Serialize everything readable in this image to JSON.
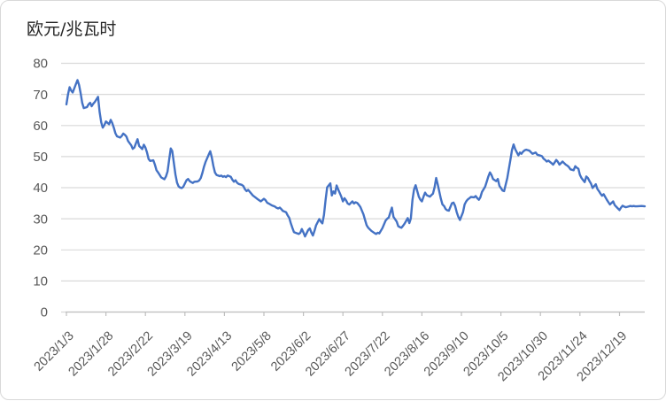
{
  "styles": {
    "background": "#ffffff",
    "frame_border_color": "#d8d8d8",
    "grid_color": "#d9d9d9",
    "axis_color": "#bfbfbf",
    "tick_label_color": "#595959",
    "title_color": "#262626"
  },
  "chart_data": {
    "type": "line",
    "title": "欧元/兆瓦时",
    "xlabel": "",
    "ylabel": "",
    "grid": true,
    "legend": false,
    "line_color": "#4472c4",
    "ylim": [
      0,
      80
    ],
    "y_ticks": [
      0,
      10,
      20,
      30,
      40,
      50,
      60,
      70,
      80
    ],
    "x_axis": {
      "rotation_deg": -45,
      "tick_interval_days": 25,
      "labels": [
        "2023/1/3",
        "2023/1/28",
        "2023/2/22",
        "2023/3/19",
        "2023/4/13",
        "2023/5/8",
        "2023/6/2",
        "2023/6/27",
        "2023/7/22",
        "2023/8/16",
        "2023/9/10",
        "2023/10/5",
        "2023/10/30",
        "2023/11/24",
        "2023/12/19"
      ]
    },
    "points": [
      [
        "2023/1/3",
        66.8
      ],
      [
        "2023/1/4",
        70.0
      ],
      [
        "2023/1/5",
        72.3
      ],
      [
        "2023/1/6",
        71.2
      ],
      [
        "2023/1/7",
        70.6
      ],
      [
        "2023/1/9",
        73.3
      ],
      [
        "2023/1/10",
        74.6
      ],
      [
        "2023/1/11",
        73.0
      ],
      [
        "2023/1/12",
        70.3
      ],
      [
        "2023/1/13",
        67.3
      ],
      [
        "2023/1/14",
        65.6
      ],
      [
        "2023/1/16",
        65.9
      ],
      [
        "2023/1/17",
        66.8
      ],
      [
        "2023/1/18",
        67.3
      ],
      [
        "2023/1/19",
        66.2
      ],
      [
        "2023/1/20",
        67.0
      ],
      [
        "2023/1/21",
        67.6
      ],
      [
        "2023/1/23",
        69.2
      ],
      [
        "2023/1/24",
        64.3
      ],
      [
        "2023/1/25",
        61.0
      ],
      [
        "2023/1/26",
        59.3
      ],
      [
        "2023/1/27",
        60.1
      ],
      [
        "2023/1/28",
        61.3
      ],
      [
        "2023/1/30",
        60.4
      ],
      [
        "2023/1/31",
        61.8
      ],
      [
        "2023/2/1",
        60.8
      ],
      [
        "2023/2/2",
        59.3
      ],
      [
        "2023/2/3",
        57.5
      ],
      [
        "2023/2/4",
        56.5
      ],
      [
        "2023/2/6",
        56.1
      ],
      [
        "2023/2/7",
        56.6
      ],
      [
        "2023/2/8",
        57.4
      ],
      [
        "2023/2/9",
        57.0
      ],
      [
        "2023/2/10",
        56.4
      ],
      [
        "2023/2/11",
        55.0
      ],
      [
        "2023/2/13",
        53.6
      ],
      [
        "2023/2/14",
        52.5
      ],
      [
        "2023/2/15",
        52.9
      ],
      [
        "2023/2/16",
        54.3
      ],
      [
        "2023/2/17",
        55.6
      ],
      [
        "2023/2/18",
        53.4
      ],
      [
        "2023/2/20",
        52.4
      ],
      [
        "2023/2/21",
        53.8
      ],
      [
        "2023/2/22",
        52.9
      ],
      [
        "2023/2/23",
        51.3
      ],
      [
        "2023/2/24",
        49.2
      ],
      [
        "2023/2/25",
        48.6
      ],
      [
        "2023/2/27",
        48.8
      ],
      [
        "2023/2/28",
        47.4
      ],
      [
        "2023/3/1",
        45.6
      ],
      [
        "2023/3/2",
        44.9
      ],
      [
        "2023/3/3",
        44.1
      ],
      [
        "2023/3/4",
        43.3
      ],
      [
        "2023/3/6",
        42.7
      ],
      [
        "2023/3/7",
        43.6
      ],
      [
        "2023/3/8",
        45.2
      ],
      [
        "2023/3/9",
        49.0
      ],
      [
        "2023/3/10",
        52.6
      ],
      [
        "2023/3/11",
        51.8
      ],
      [
        "2023/3/13",
        44.2
      ],
      [
        "2023/3/14",
        41.6
      ],
      [
        "2023/3/15",
        40.4
      ],
      [
        "2023/3/16",
        40.0
      ],
      [
        "2023/3/17",
        39.9
      ],
      [
        "2023/3/18",
        40.3
      ],
      [
        "2023/3/20",
        42.4
      ],
      [
        "2023/3/21",
        42.8
      ],
      [
        "2023/3/22",
        42.1
      ],
      [
        "2023/3/23",
        41.8
      ],
      [
        "2023/3/24",
        41.5
      ],
      [
        "2023/3/25",
        41.9
      ],
      [
        "2023/3/27",
        42.0
      ],
      [
        "2023/3/28",
        42.3
      ],
      [
        "2023/3/29",
        43.1
      ],
      [
        "2023/3/30",
        44.6
      ],
      [
        "2023/3/31",
        46.6
      ],
      [
        "2023/4/1",
        48.2
      ],
      [
        "2023/4/3",
        50.6
      ],
      [
        "2023/4/4",
        51.7
      ],
      [
        "2023/4/5",
        49.8
      ],
      [
        "2023/4/6",
        47.0
      ],
      [
        "2023/4/7",
        44.9
      ],
      [
        "2023/4/8",
        44.1
      ],
      [
        "2023/4/10",
        43.7
      ],
      [
        "2023/4/11",
        43.9
      ],
      [
        "2023/4/12",
        43.5
      ],
      [
        "2023/4/13",
        43.7
      ],
      [
        "2023/4/14",
        43.4
      ],
      [
        "2023/4/15",
        43.9
      ],
      [
        "2023/4/17",
        43.5
      ],
      [
        "2023/4/18",
        42.6
      ],
      [
        "2023/4/19",
        41.9
      ],
      [
        "2023/4/20",
        42.4
      ],
      [
        "2023/4/21",
        41.6
      ],
      [
        "2023/4/22",
        41.2
      ],
      [
        "2023/4/24",
        40.9
      ],
      [
        "2023/4/25",
        40.5
      ],
      [
        "2023/4/26",
        39.5
      ],
      [
        "2023/4/27",
        38.9
      ],
      [
        "2023/4/28",
        39.3
      ],
      [
        "2023/4/29",
        38.7
      ],
      [
        "2023/5/1",
        37.5
      ],
      [
        "2023/5/2",
        37.1
      ],
      [
        "2023/5/3",
        36.7
      ],
      [
        "2023/5/4",
        36.3
      ],
      [
        "2023/5/6",
        35.6
      ],
      [
        "2023/5/8",
        36.4
      ],
      [
        "2023/5/9",
        36.0
      ],
      [
        "2023/5/10",
        35.2
      ],
      [
        "2023/5/11",
        34.9
      ],
      [
        "2023/5/13",
        34.3
      ],
      [
        "2023/5/15",
        33.9
      ],
      [
        "2023/5/16",
        33.5
      ],
      [
        "2023/5/17",
        33.3
      ],
      [
        "2023/5/18",
        33.6
      ],
      [
        "2023/5/19",
        33.1
      ],
      [
        "2023/5/20",
        32.5
      ],
      [
        "2023/5/22",
        32.1
      ],
      [
        "2023/5/23",
        31.1
      ],
      [
        "2023/5/24",
        30.3
      ],
      [
        "2023/5/25",
        28.6
      ],
      [
        "2023/5/26",
        27.1
      ],
      [
        "2023/5/27",
        25.7
      ],
      [
        "2023/5/29",
        25.3
      ],
      [
        "2023/5/30",
        25.1
      ],
      [
        "2023/5/31",
        25.5
      ],
      [
        "2023/6/1",
        26.7
      ],
      [
        "2023/6/2",
        25.6
      ],
      [
        "2023/6/3",
        24.3
      ],
      [
        "2023/6/5",
        26.4
      ],
      [
        "2023/6/6",
        26.9
      ],
      [
        "2023/6/7",
        25.6
      ],
      [
        "2023/6/8",
        24.6
      ],
      [
        "2023/6/9",
        26.1
      ],
      [
        "2023/6/10",
        27.9
      ],
      [
        "2023/6/12",
        29.9
      ],
      [
        "2023/6/13",
        29.1
      ],
      [
        "2023/6/14",
        28.5
      ],
      [
        "2023/6/15",
        31.2
      ],
      [
        "2023/6/16",
        36.0
      ],
      [
        "2023/6/17",
        40.1
      ],
      [
        "2023/6/19",
        41.4
      ],
      [
        "2023/6/20",
        37.5
      ],
      [
        "2023/6/21",
        38.8
      ],
      [
        "2023/6/22",
        38.1
      ],
      [
        "2023/6/23",
        40.7
      ],
      [
        "2023/6/24",
        39.4
      ],
      [
        "2023/6/26",
        37.1
      ],
      [
        "2023/6/27",
        35.6
      ],
      [
        "2023/6/28",
        36.6
      ],
      [
        "2023/6/29",
        35.9
      ],
      [
        "2023/6/30",
        34.9
      ],
      [
        "2023/7/1",
        34.6
      ],
      [
        "2023/7/3",
        35.6
      ],
      [
        "2023/7/4",
        34.9
      ],
      [
        "2023/7/5",
        35.3
      ],
      [
        "2023/7/6",
        35.1
      ],
      [
        "2023/7/7",
        34.5
      ],
      [
        "2023/7/8",
        33.8
      ],
      [
        "2023/7/10",
        31.4
      ],
      [
        "2023/7/11",
        29.6
      ],
      [
        "2023/7/12",
        27.9
      ],
      [
        "2023/7/13",
        27.1
      ],
      [
        "2023/7/15",
        26.1
      ],
      [
        "2023/7/17",
        25.4
      ],
      [
        "2023/7/18",
        25.1
      ],
      [
        "2023/7/19",
        25.5
      ],
      [
        "2023/7/20",
        25.3
      ],
      [
        "2023/7/22",
        27.0
      ],
      [
        "2023/7/24",
        29.4
      ],
      [
        "2023/7/25",
        30.0
      ],
      [
        "2023/7/26",
        30.4
      ],
      [
        "2023/7/27",
        32.1
      ],
      [
        "2023/7/28",
        33.6
      ],
      [
        "2023/7/29",
        30.6
      ],
      [
        "2023/7/31",
        29.1
      ],
      [
        "2023/8/1",
        27.6
      ],
      [
        "2023/8/2",
        27.3
      ],
      [
        "2023/8/3",
        27.1
      ],
      [
        "2023/8/4",
        27.7
      ],
      [
        "2023/8/5",
        28.4
      ],
      [
        "2023/8/7",
        30.2
      ],
      [
        "2023/8/8",
        28.6
      ],
      [
        "2023/8/9",
        30.1
      ],
      [
        "2023/8/10",
        36.0
      ],
      [
        "2023/8/11",
        39.4
      ],
      [
        "2023/8/12",
        40.8
      ],
      [
        "2023/8/14",
        37.1
      ],
      [
        "2023/8/15",
        36.1
      ],
      [
        "2023/8/16",
        35.6
      ],
      [
        "2023/8/17",
        37.1
      ],
      [
        "2023/8/18",
        38.4
      ],
      [
        "2023/8/19",
        37.6
      ],
      [
        "2023/8/21",
        37.1
      ],
      [
        "2023/8/22",
        37.6
      ],
      [
        "2023/8/23",
        38.1
      ],
      [
        "2023/8/24",
        40.1
      ],
      [
        "2023/8/25",
        43.1
      ],
      [
        "2023/8/26",
        41.0
      ],
      [
        "2023/8/28",
        36.4
      ],
      [
        "2023/8/29",
        34.6
      ],
      [
        "2023/8/30",
        34.1
      ],
      [
        "2023/8/31",
        33.1
      ],
      [
        "2023/9/1",
        32.7
      ],
      [
        "2023/9/2",
        32.6
      ],
      [
        "2023/9/4",
        35.0
      ],
      [
        "2023/9/5",
        35.2
      ],
      [
        "2023/9/6",
        34.1
      ],
      [
        "2023/9/7",
        32.1
      ],
      [
        "2023/9/8",
        30.6
      ],
      [
        "2023/9/9",
        29.6
      ],
      [
        "2023/9/11",
        32.1
      ],
      [
        "2023/9/12",
        34.6
      ],
      [
        "2023/9/13",
        35.6
      ],
      [
        "2023/9/14",
        36.2
      ],
      [
        "2023/9/15",
        36.6
      ],
      [
        "2023/9/16",
        37.0
      ],
      [
        "2023/9/18",
        36.9
      ],
      [
        "2023/9/19",
        37.3
      ],
      [
        "2023/9/20",
        36.6
      ],
      [
        "2023/9/21",
        36.1
      ],
      [
        "2023/9/22",
        36.9
      ],
      [
        "2023/9/23",
        38.6
      ],
      [
        "2023/9/25",
        40.3
      ],
      [
        "2023/9/26",
        41.9
      ],
      [
        "2023/9/27",
        43.6
      ],
      [
        "2023/9/28",
        44.9
      ],
      [
        "2023/9/29",
        44.1
      ],
      [
        "2023/9/30",
        42.8
      ],
      [
        "2023/10/2",
        42.1
      ],
      [
        "2023/10/3",
        42.8
      ],
      [
        "2023/10/4",
        40.6
      ],
      [
        "2023/10/5",
        39.9
      ],
      [
        "2023/10/6",
        39.1
      ],
      [
        "2023/10/7",
        38.9
      ],
      [
        "2023/10/9",
        43.1
      ],
      [
        "2023/10/10",
        46.1
      ],
      [
        "2023/10/11",
        48.9
      ],
      [
        "2023/10/12",
        52.1
      ],
      [
        "2023/10/13",
        53.9
      ],
      [
        "2023/10/14",
        52.4
      ],
      [
        "2023/10/16",
        50.4
      ],
      [
        "2023/10/17",
        51.3
      ],
      [
        "2023/10/18",
        50.9
      ],
      [
        "2023/10/19",
        51.6
      ],
      [
        "2023/10/20",
        52.0
      ],
      [
        "2023/10/21",
        52.2
      ],
      [
        "2023/10/23",
        51.9
      ],
      [
        "2023/10/24",
        51.4
      ],
      [
        "2023/10/25",
        50.9
      ],
      [
        "2023/10/26",
        51.1
      ],
      [
        "2023/10/27",
        51.3
      ],
      [
        "2023/10/28",
        50.6
      ],
      [
        "2023/10/30",
        50.3
      ],
      [
        "2023/10/31",
        50.1
      ],
      [
        "2023/11/1",
        49.3
      ],
      [
        "2023/11/2",
        48.9
      ],
      [
        "2023/11/3",
        48.4
      ],
      [
        "2023/11/4",
        48.7
      ],
      [
        "2023/11/6",
        47.9
      ],
      [
        "2023/11/7",
        47.4
      ],
      [
        "2023/11/8",
        48.1
      ],
      [
        "2023/11/9",
        48.9
      ],
      [
        "2023/11/10",
        48.3
      ],
      [
        "2023/11/11",
        47.4
      ],
      [
        "2023/11/13",
        48.4
      ],
      [
        "2023/11/14",
        47.9
      ],
      [
        "2023/11/15",
        47.4
      ],
      [
        "2023/11/16",
        47.1
      ],
      [
        "2023/11/17",
        46.6
      ],
      [
        "2023/11/18",
        45.9
      ],
      [
        "2023/11/20",
        45.6
      ],
      [
        "2023/11/21",
        46.9
      ],
      [
        "2023/11/22",
        46.4
      ],
      [
        "2023/11/23",
        46.1
      ],
      [
        "2023/11/24",
        44.1
      ],
      [
        "2023/11/25",
        43.1
      ],
      [
        "2023/11/27",
        41.8
      ],
      [
        "2023/11/28",
        43.6
      ],
      [
        "2023/11/29",
        43.1
      ],
      [
        "2023/11/30",
        42.1
      ],
      [
        "2023/12/1",
        41.3
      ],
      [
        "2023/12/2",
        39.9
      ],
      [
        "2023/12/4",
        41.1
      ],
      [
        "2023/12/5",
        39.6
      ],
      [
        "2023/12/6",
        38.9
      ],
      [
        "2023/12/7",
        38.1
      ],
      [
        "2023/12/8",
        37.4
      ],
      [
        "2023/12/9",
        37.9
      ],
      [
        "2023/12/11",
        36.1
      ],
      [
        "2023/12/12",
        35.3
      ],
      [
        "2023/12/13",
        34.6
      ],
      [
        "2023/12/14",
        35.1
      ],
      [
        "2023/12/15",
        35.6
      ],
      [
        "2023/12/16",
        34.4
      ],
      [
        "2023/12/18",
        33.3
      ],
      [
        "2023/12/19",
        32.8
      ],
      [
        "2023/12/20",
        33.6
      ],
      [
        "2023/12/21",
        34.2
      ],
      [
        "2023/12/22",
        33.9
      ],
      [
        "2023/12/23",
        33.7
      ],
      [
        "2023/12/25",
        34.0
      ],
      [
        "2023/12/26",
        34.1
      ],
      [
        "2023/12/27",
        34.0
      ],
      [
        "2023/12/28",
        34.1
      ],
      [
        "2023/12/29",
        34.0
      ],
      [
        "2023/12/30",
        34.0
      ],
      [
        "2024/1/2",
        34.1
      ],
      [
        "2024/1/4",
        34.0
      ]
    ]
  }
}
